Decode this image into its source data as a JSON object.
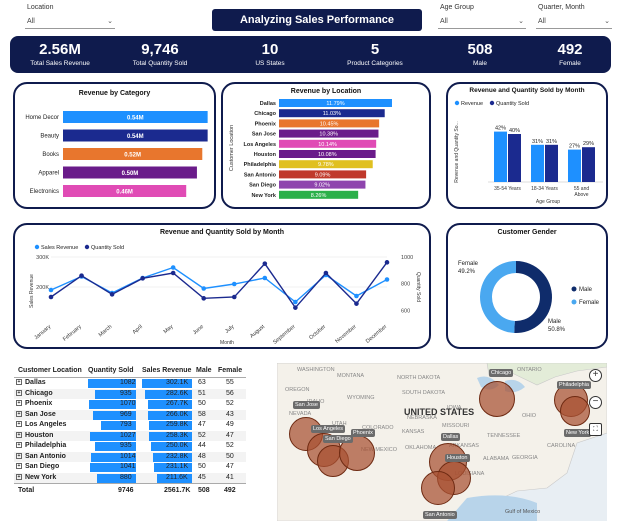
{
  "filters": {
    "location": {
      "label": "Location",
      "value": "All"
    },
    "age_group": {
      "label": "Age Group",
      "value": "All"
    },
    "quarter_month": {
      "label": "Quarter, Month",
      "value": "All"
    }
  },
  "title": "Analyzing Sales Performance",
  "kpis": [
    {
      "value": "2.56M",
      "label": "Total Sales Revenue"
    },
    {
      "value": "9,746",
      "label": "Total Quantity Sold"
    },
    {
      "value": "10",
      "label": "US States"
    },
    {
      "value": "5",
      "label": "Product Categories"
    },
    {
      "value": "508",
      "label": "Male"
    },
    {
      "value": "492",
      "label": "Female"
    }
  ],
  "chart_data": [
    {
      "type": "bar",
      "orientation": "horizontal",
      "title": "Revenue by Category",
      "categories": [
        "Home Decor",
        "Beauty",
        "Books",
        "Apparel",
        "Electronics"
      ],
      "values": [
        0.54,
        0.54,
        0.52,
        0.5,
        0.46
      ],
      "labels": [
        "0.54M",
        "0.54M",
        "0.52M",
        "0.50M",
        "0.46M"
      ],
      "colors": [
        "#1e90ff",
        "#1b2a8f",
        "#e8762d",
        "#6a1b8a",
        "#e04bb5"
      ]
    },
    {
      "type": "bar",
      "orientation": "horizontal",
      "title": "Revenue by Location",
      "ylabel": "Customer Location",
      "categories": [
        "Dallas",
        "Chicago",
        "Phoenix",
        "San Jose",
        "Los Angeles",
        "Houston",
        "Philadelphia",
        "San Antonio",
        "San Diego",
        "New York"
      ],
      "values": [
        11.79,
        11.03,
        10.45,
        10.38,
        10.14,
        10.08,
        9.78,
        9.09,
        9.02,
        8.26
      ],
      "labels": [
        "11.79%",
        "11.03%",
        "10.45%",
        "10.38%",
        "10.14%",
        "10.08%",
        "9.78%",
        "9.09%",
        "9.02%",
        "8.26%"
      ],
      "colors": [
        "#1e90ff",
        "#1b2a8f",
        "#e8762d",
        "#6a1b8a",
        "#e04bb5",
        "#6a1b8a",
        "#e0c020",
        "#c0392b",
        "#8e44ad",
        "#2bb04a"
      ]
    },
    {
      "type": "bar",
      "title": "Revenue and Quantity Sold by Month",
      "xlabel": "Age Group",
      "ylabel": "Revenue and Quantity So...",
      "categories": [
        "35-54 Years",
        "18-34 Years",
        "55 and Above"
      ],
      "series": [
        {
          "name": "Revenue",
          "values": [
            42,
            31,
            27
          ],
          "labels": [
            "42%",
            "31%",
            "27%"
          ],
          "color": "#1e90ff"
        },
        {
          "name": "Quantity Sold",
          "values": [
            40,
            31,
            29
          ],
          "labels": [
            "40%",
            "31%",
            "29%"
          ],
          "color": "#1b2a8f"
        }
      ],
      "ylim": [
        0,
        50
      ]
    },
    {
      "type": "line",
      "title": "Revenue and Quantity Sold by Month",
      "xlabel": "Month",
      "ylabel": "Sales Revenue",
      "y2label": "Quantity Sold",
      "categories": [
        "January",
        "February",
        "March",
        "April",
        "May",
        "June",
        "July",
        "August",
        "September",
        "October",
        "November",
        "December"
      ],
      "series": [
        {
          "name": "Sales Revenue",
          "axis": "left",
          "values": [
            190,
            235,
            180,
            230,
            265,
            195,
            210,
            230,
            150,
            240,
            170,
            225
          ],
          "color": "#1e90ff"
        },
        {
          "name": "Quantity Sold",
          "axis": "right",
          "values": [
            700,
            860,
            720,
            840,
            880,
            690,
            700,
            950,
            620,
            880,
            650,
            960
          ],
          "color": "#1b2a8f"
        }
      ],
      "ylim": [
        100,
        300
      ],
      "y2lim": [
        550,
        1000
      ],
      "yticks": [
        "300K",
        "200K"
      ],
      "y2ticks": [
        "1000",
        "800",
        "600"
      ]
    },
    {
      "type": "pie",
      "donut": true,
      "title": "Customer Gender",
      "categories": [
        "Male",
        "Female"
      ],
      "values": [
        50.8,
        49.2
      ],
      "labels": [
        "Male 50.8%",
        "Female 49.2%"
      ],
      "colors": [
        "#0f2c6b",
        "#4aa8f0"
      ]
    }
  ],
  "table": {
    "headers": [
      "Customer Location",
      "Quantity Sold",
      "Sales Revenue",
      "Male",
      "Female"
    ],
    "rows": [
      {
        "loc": "Dallas",
        "qty": "1082",
        "qty_v": 1082,
        "rev": "302.1K",
        "rev_v": 302.1,
        "male": "63",
        "female": "55"
      },
      {
        "loc": "Chicago",
        "qty": "935",
        "qty_v": 935,
        "rev": "282.6K",
        "rev_v": 282.6,
        "male": "51",
        "female": "56"
      },
      {
        "loc": "Phoenix",
        "qty": "1070",
        "qty_v": 1070,
        "rev": "267.7K",
        "rev_v": 267.7,
        "male": "50",
        "female": "52"
      },
      {
        "loc": "San Jose",
        "qty": "969",
        "qty_v": 969,
        "rev": "266.0K",
        "rev_v": 266.0,
        "male": "58",
        "female": "43"
      },
      {
        "loc": "Los Angeles",
        "qty": "793",
        "qty_v": 793,
        "rev": "259.8K",
        "rev_v": 259.8,
        "male": "47",
        "female": "49"
      },
      {
        "loc": "Houston",
        "qty": "1027",
        "qty_v": 1027,
        "rev": "258.3K",
        "rev_v": 258.3,
        "male": "52",
        "female": "47"
      },
      {
        "loc": "Philadelphia",
        "qty": "935",
        "qty_v": 935,
        "rev": "250.0K",
        "rev_v": 250.0,
        "male": "44",
        "female": "52"
      },
      {
        "loc": "San Antonio",
        "qty": "1014",
        "qty_v": 1014,
        "rev": "232.8K",
        "rev_v": 232.8,
        "male": "48",
        "female": "50"
      },
      {
        "loc": "San Diego",
        "qty": "1041",
        "qty_v": 1041,
        "rev": "231.1K",
        "rev_v": 231.1,
        "male": "50",
        "female": "47"
      },
      {
        "loc": "New York",
        "qty": "880",
        "qty_v": 880,
        "rev": "211.6K",
        "rev_v": 211.6,
        "male": "45",
        "female": "41"
      }
    ],
    "total": {
      "loc": "Total",
      "qty": "9746",
      "rev": "2561.7K",
      "male": "508",
      "female": "492"
    }
  },
  "map": {
    "country_label": "UNITED STATES",
    "regions": [
      "NORTH DAKOTA",
      "MONTANA",
      "SOUTH DAKOTA",
      "WYOMING",
      "NEBRASKA",
      "UTAH",
      "COLORADO",
      "KANSAS",
      "MISSOURI",
      "OKLAHOMA",
      "ARKANSAS",
      "NEW MEXICO",
      "TENNESSEE",
      "ALABAMA",
      "GEORGIA",
      "LOUISIANA",
      "NEVADA",
      "OREGON",
      "IDAHO",
      "IOWA",
      "OHIO",
      "ONTARIO",
      "WASHINGTON",
      "CAROLINA"
    ],
    "city_labels": [
      "Chicago",
      "Philadelphia",
      "San Jose",
      "Los Angeles",
      "San Diego",
      "Phoenix",
      "Dallas",
      "Houston",
      "San Antonio",
      "New York"
    ],
    "sea_labels": [
      "Gulf of Mexico"
    ],
    "bubble_color": "#a85032"
  },
  "legend_rev": "Revenue",
  "legend_qty": "Quantity Sold",
  "legend_sales_rev": "Sales Revenue",
  "legend_qty2": "Quantity Sold",
  "gender_legend": {
    "male": "Male",
    "female": "Female"
  }
}
